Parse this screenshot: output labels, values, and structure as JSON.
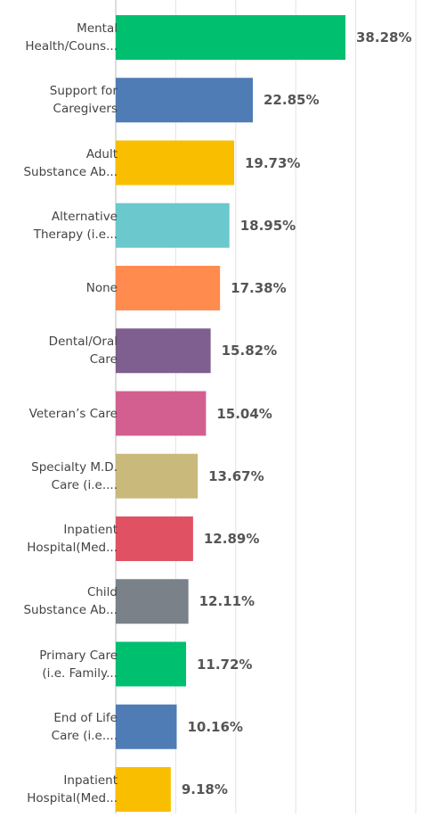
{
  "chart_data": {
    "type": "bar",
    "orientation": "horizontal",
    "categories": [
      "Mental\nHealth/Couns...",
      "Support for\nCaregivers",
      "Adult\nSubstance Ab...",
      "Alternative\nTherapy (i.e...",
      "None",
      "Dental/Oral\nCare",
      "Veteran’s Care",
      "Specialty M.D.\nCare (i.e....",
      "Inpatient\nHospital(Med...",
      "Child\nSubstance Ab...",
      "Primary Care\n(i.e. Family...",
      "End of Life\nCare (i.e....",
      "Inpatient\nHospital(Med..."
    ],
    "values": [
      38.28,
      22.85,
      19.73,
      18.95,
      17.38,
      15.82,
      15.04,
      13.67,
      12.89,
      12.11,
      11.72,
      10.16,
      9.18
    ],
    "value_labels": [
      "38.28%",
      "22.85%",
      "19.73%",
      "18.95%",
      "17.38%",
      "15.82%",
      "15.04%",
      "13.67%",
      "12.89%",
      "12.11%",
      "11.72%",
      "10.16%",
      "9.18%"
    ],
    "colors": [
      "#00bf6f",
      "#507cb6",
      "#f9be00",
      "#6bc8cd",
      "#ff8b4f",
      "#7f5f8f",
      "#d25f90",
      "#c9b97a",
      "#e05263",
      "#7a8188",
      "#00bf6f",
      "#507cb6",
      "#f9be00"
    ],
    "xlim": [
      0,
      50
    ],
    "xticks": [
      0,
      10,
      20,
      30,
      40,
      50
    ],
    "grid": true
  }
}
